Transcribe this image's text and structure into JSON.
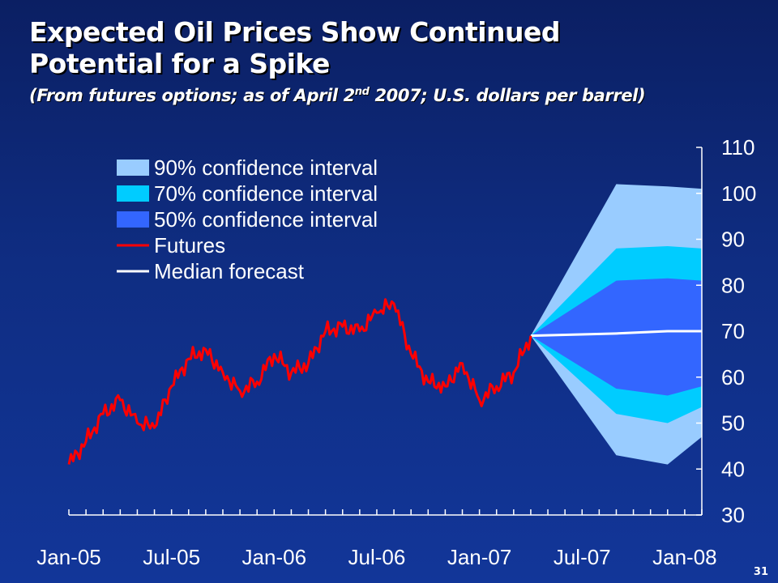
{
  "header": {
    "title_line1": "Expected Oil Prices Show Continued",
    "title_line2": "Potential for a Spike",
    "subtitle_pre": "(From futures options; as of April 2",
    "subtitle_sup": "nd",
    "subtitle_post": " 2007; U.S. dollars per barrel)"
  },
  "page_number": "31",
  "colors": {
    "ci90": "#99ccff",
    "ci70": "#00ccff",
    "ci50": "#3366ff",
    "futures": "#ff0000",
    "median": "#ffffff",
    "axis": "#ffffff"
  },
  "chart_data": {
    "type": "area",
    "ylim": [
      30,
      110
    ],
    "yticks": [
      30,
      40,
      50,
      60,
      70,
      80,
      90,
      100,
      110
    ],
    "x_tick_labels": [
      "Jan-05",
      "Jul-05",
      "Jan-06",
      "Jul-06",
      "Jan-07",
      "Jul-07",
      "Jan-08"
    ],
    "xlim": [
      "2005-01",
      "2008-02"
    ],
    "legend": [
      {
        "key": "ci90",
        "label": "90% confidence interval",
        "kind": "box"
      },
      {
        "key": "ci70",
        "label": "70% confidence interval",
        "kind": "box"
      },
      {
        "key": "ci50",
        "label": "50% confidence interval",
        "kind": "box"
      },
      {
        "key": "futures",
        "label": "Futures",
        "kind": "line"
      },
      {
        "key": "median",
        "label": "Median forecast",
        "kind": "line"
      }
    ],
    "futures_series": {
      "name": "Futures",
      "x": [
        "2005-01",
        "2005-02",
        "2005-03",
        "2005-04",
        "2005-05",
        "2005-06",
        "2005-07",
        "2005-08",
        "2005-09",
        "2005-10",
        "2005-11",
        "2005-12",
        "2006-01",
        "2006-02",
        "2006-03",
        "2006-04",
        "2006-05",
        "2006-06",
        "2006-07",
        "2006-08",
        "2006-09",
        "2006-10",
        "2006-11",
        "2006-12",
        "2007-01",
        "2007-02",
        "2007-03",
        "2007-04"
      ],
      "values": [
        41,
        46,
        52,
        55,
        50,
        49,
        58,
        64,
        66,
        61,
        57,
        59,
        65,
        61,
        63,
        70,
        71,
        70,
        74,
        76,
        65,
        59,
        58,
        63,
        55,
        58,
        61,
        69
      ]
    },
    "forecast": {
      "x": [
        "2007-04",
        "2007-09",
        "2007-12",
        "2008-02"
      ],
      "median": [
        69,
        69.5,
        70,
        70
      ],
      "ci50_low": [
        69,
        57.5,
        56,
        58
      ],
      "ci50_high": [
        69,
        81,
        81.5,
        81
      ],
      "ci70_low": [
        69,
        52,
        50,
        53.5
      ],
      "ci70_high": [
        69,
        88,
        88.5,
        88
      ],
      "ci90_low": [
        69,
        43,
        41,
        47
      ],
      "ci90_high": [
        69,
        102,
        101.5,
        101
      ]
    }
  }
}
